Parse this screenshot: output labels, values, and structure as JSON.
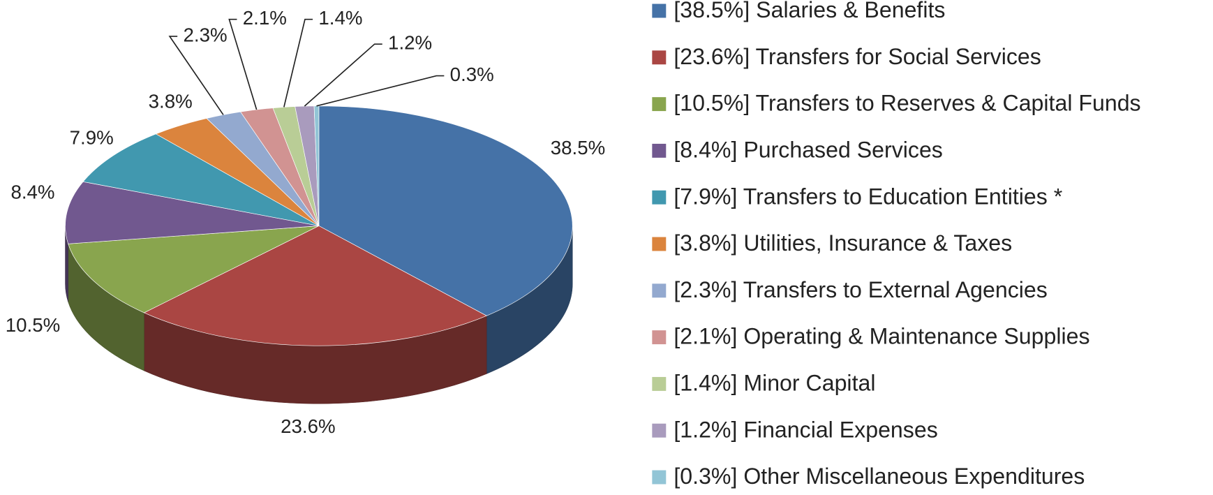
{
  "chart_data": {
    "type": "pie",
    "categories": [
      "[38.5%]  Salaries & Benefits",
      "[23.6%]  Transfers for Social Services",
      "[10.5%]  Transfers to Reserves & Capital Funds",
      "[8.4%]  Purchased Services",
      "[7.9%]  Transfers to Education Entities *",
      "[3.8%]  Utilities, Insurance & Taxes",
      "[2.3%]  Transfers to External Agencies",
      "[2.1%]  Operating & Maintenance Supplies",
      "[1.4%]  Minor Capital",
      "[1.2%]  Financial Expenses",
      "[0.3%]  Other Miscellaneous Expenditures"
    ],
    "values": [
      38.5,
      23.6,
      10.5,
      8.4,
      7.9,
      3.8,
      2.3,
      2.1,
      1.4,
      1.2,
      0.3
    ],
    "value_labels": [
      "38.5%",
      "23.6%",
      "10.5%",
      "8.4%",
      "7.9%",
      "3.8%",
      "2.3%",
      "2.1%",
      "1.4%",
      "1.2%",
      "0.3%"
    ],
    "colors": [
      "#4572a7",
      "#aa4643",
      "#89a54e",
      "#71588f",
      "#4198af",
      "#db843d",
      "#93a9cf",
      "#d19392",
      "#b9cd96",
      "#a99bbd",
      "#92c5d6"
    ],
    "legend": "right",
    "three_d": true
  }
}
